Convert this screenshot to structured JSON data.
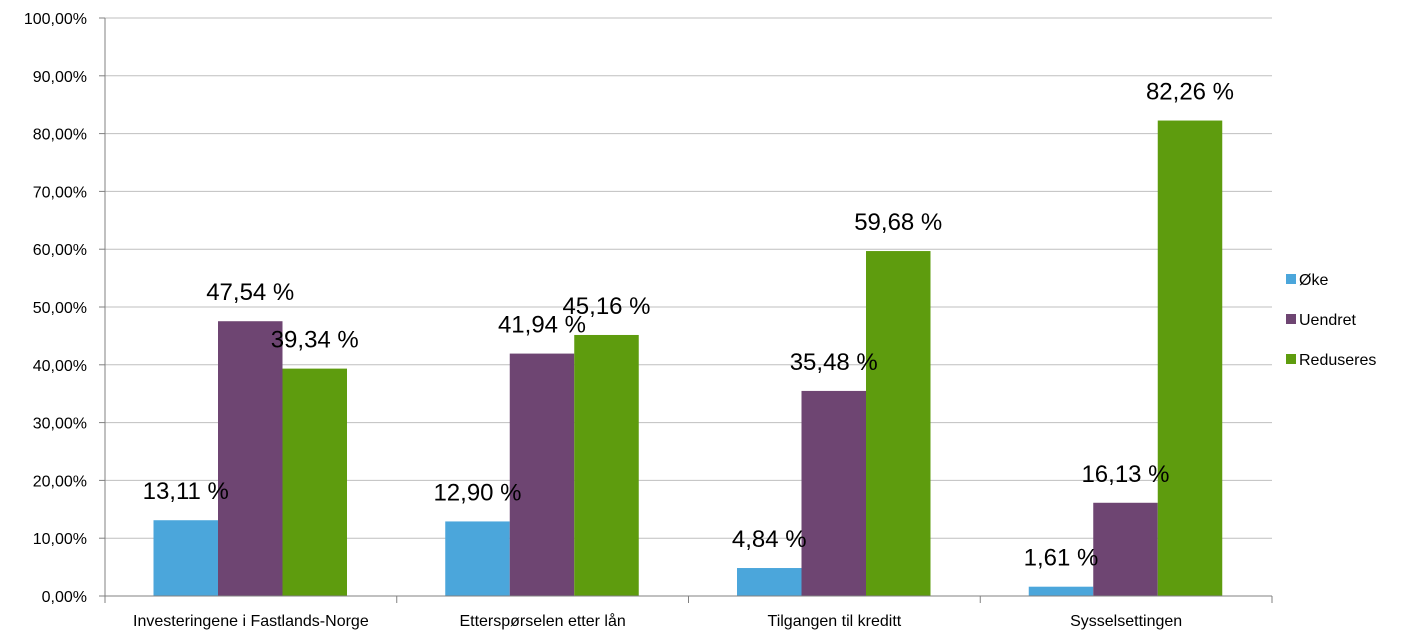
{
  "chart_data": {
    "type": "bar",
    "title": "",
    "xlabel": "",
    "ylabel": "",
    "categories": [
      "Investeringene i Fastlands-Norge",
      "Etterspørselen etter lån",
      "Tilgangen til kreditt",
      "Sysselsettingen"
    ],
    "series": [
      {
        "name": "Øke",
        "color": "#4BA6DB",
        "values": [
          13.11,
          12.9,
          4.84,
          1.61
        ],
        "labels": [
          "13,11 %",
          "12,90 %",
          "4,84 %",
          "1,61 %"
        ]
      },
      {
        "name": "Uendret",
        "color": "#6E4572",
        "values": [
          47.54,
          41.94,
          35.48,
          16.13
        ],
        "labels": [
          "47,54 %",
          "41,94 %",
          "35,48 %",
          "16,13 %"
        ]
      },
      {
        "name": "Reduseres",
        "color": "#5E9C0E",
        "values": [
          39.34,
          45.16,
          59.68,
          82.26
        ],
        "labels": [
          "39,34 %",
          "45,16 %",
          "59,68 %",
          "82,26 %"
        ]
      }
    ],
    "ylim": [
      0,
      100
    ],
    "yticks": [
      "0,00%",
      "10,00%",
      "20,00%",
      "30,00%",
      "40,00%",
      "50,00%",
      "60,00%",
      "70,00%",
      "80,00%",
      "90,00%",
      "100,00%"
    ],
    "grid": true,
    "legend_position": "right"
  }
}
